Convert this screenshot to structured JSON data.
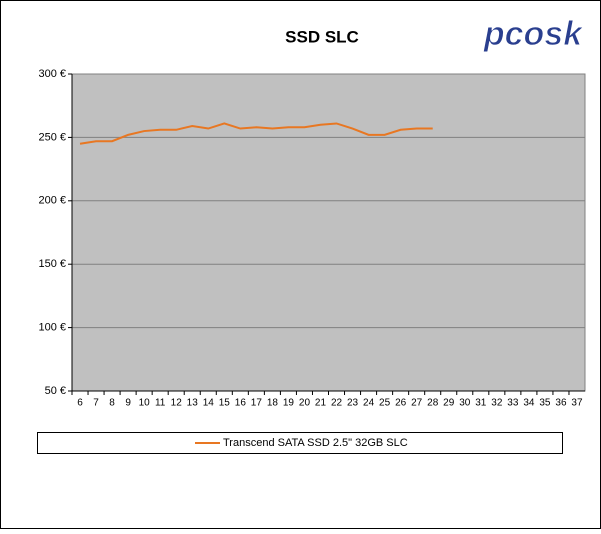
{
  "chart_data": {
    "type": "line",
    "title": "SSD SLC",
    "logo": "pcosk",
    "categories": [
      "6",
      "7",
      "8",
      "9",
      "10",
      "11",
      "12",
      "13",
      "14",
      "15",
      "16",
      "17",
      "18",
      "19",
      "20",
      "21",
      "22",
      "23",
      "24",
      "25",
      "26",
      "27",
      "28",
      "29",
      "30",
      "31",
      "32",
      "33",
      "34",
      "35",
      "36",
      "37"
    ],
    "series": [
      {
        "name": "Transcend SATA SSD 2.5\" 32GB SLC",
        "color": "#e87722",
        "values": [
          245,
          247,
          247,
          252,
          255,
          256,
          256,
          259,
          257,
          261,
          257,
          258,
          257,
          258,
          258,
          260,
          261,
          257,
          252,
          252,
          256,
          257,
          257,
          null,
          null,
          null,
          null,
          null,
          null,
          null,
          null,
          null
        ]
      }
    ],
    "ylim": [
      50,
      300
    ],
    "yticks": [
      {
        "value": 50,
        "label": "50 €"
      },
      {
        "value": 100,
        "label": "100 €"
      },
      {
        "value": 150,
        "label": "150 €"
      },
      {
        "value": 200,
        "label": "200 €"
      },
      {
        "value": 250,
        "label": "250 €"
      },
      {
        "value": 300,
        "label": "300 €"
      }
    ],
    "grid": true
  }
}
